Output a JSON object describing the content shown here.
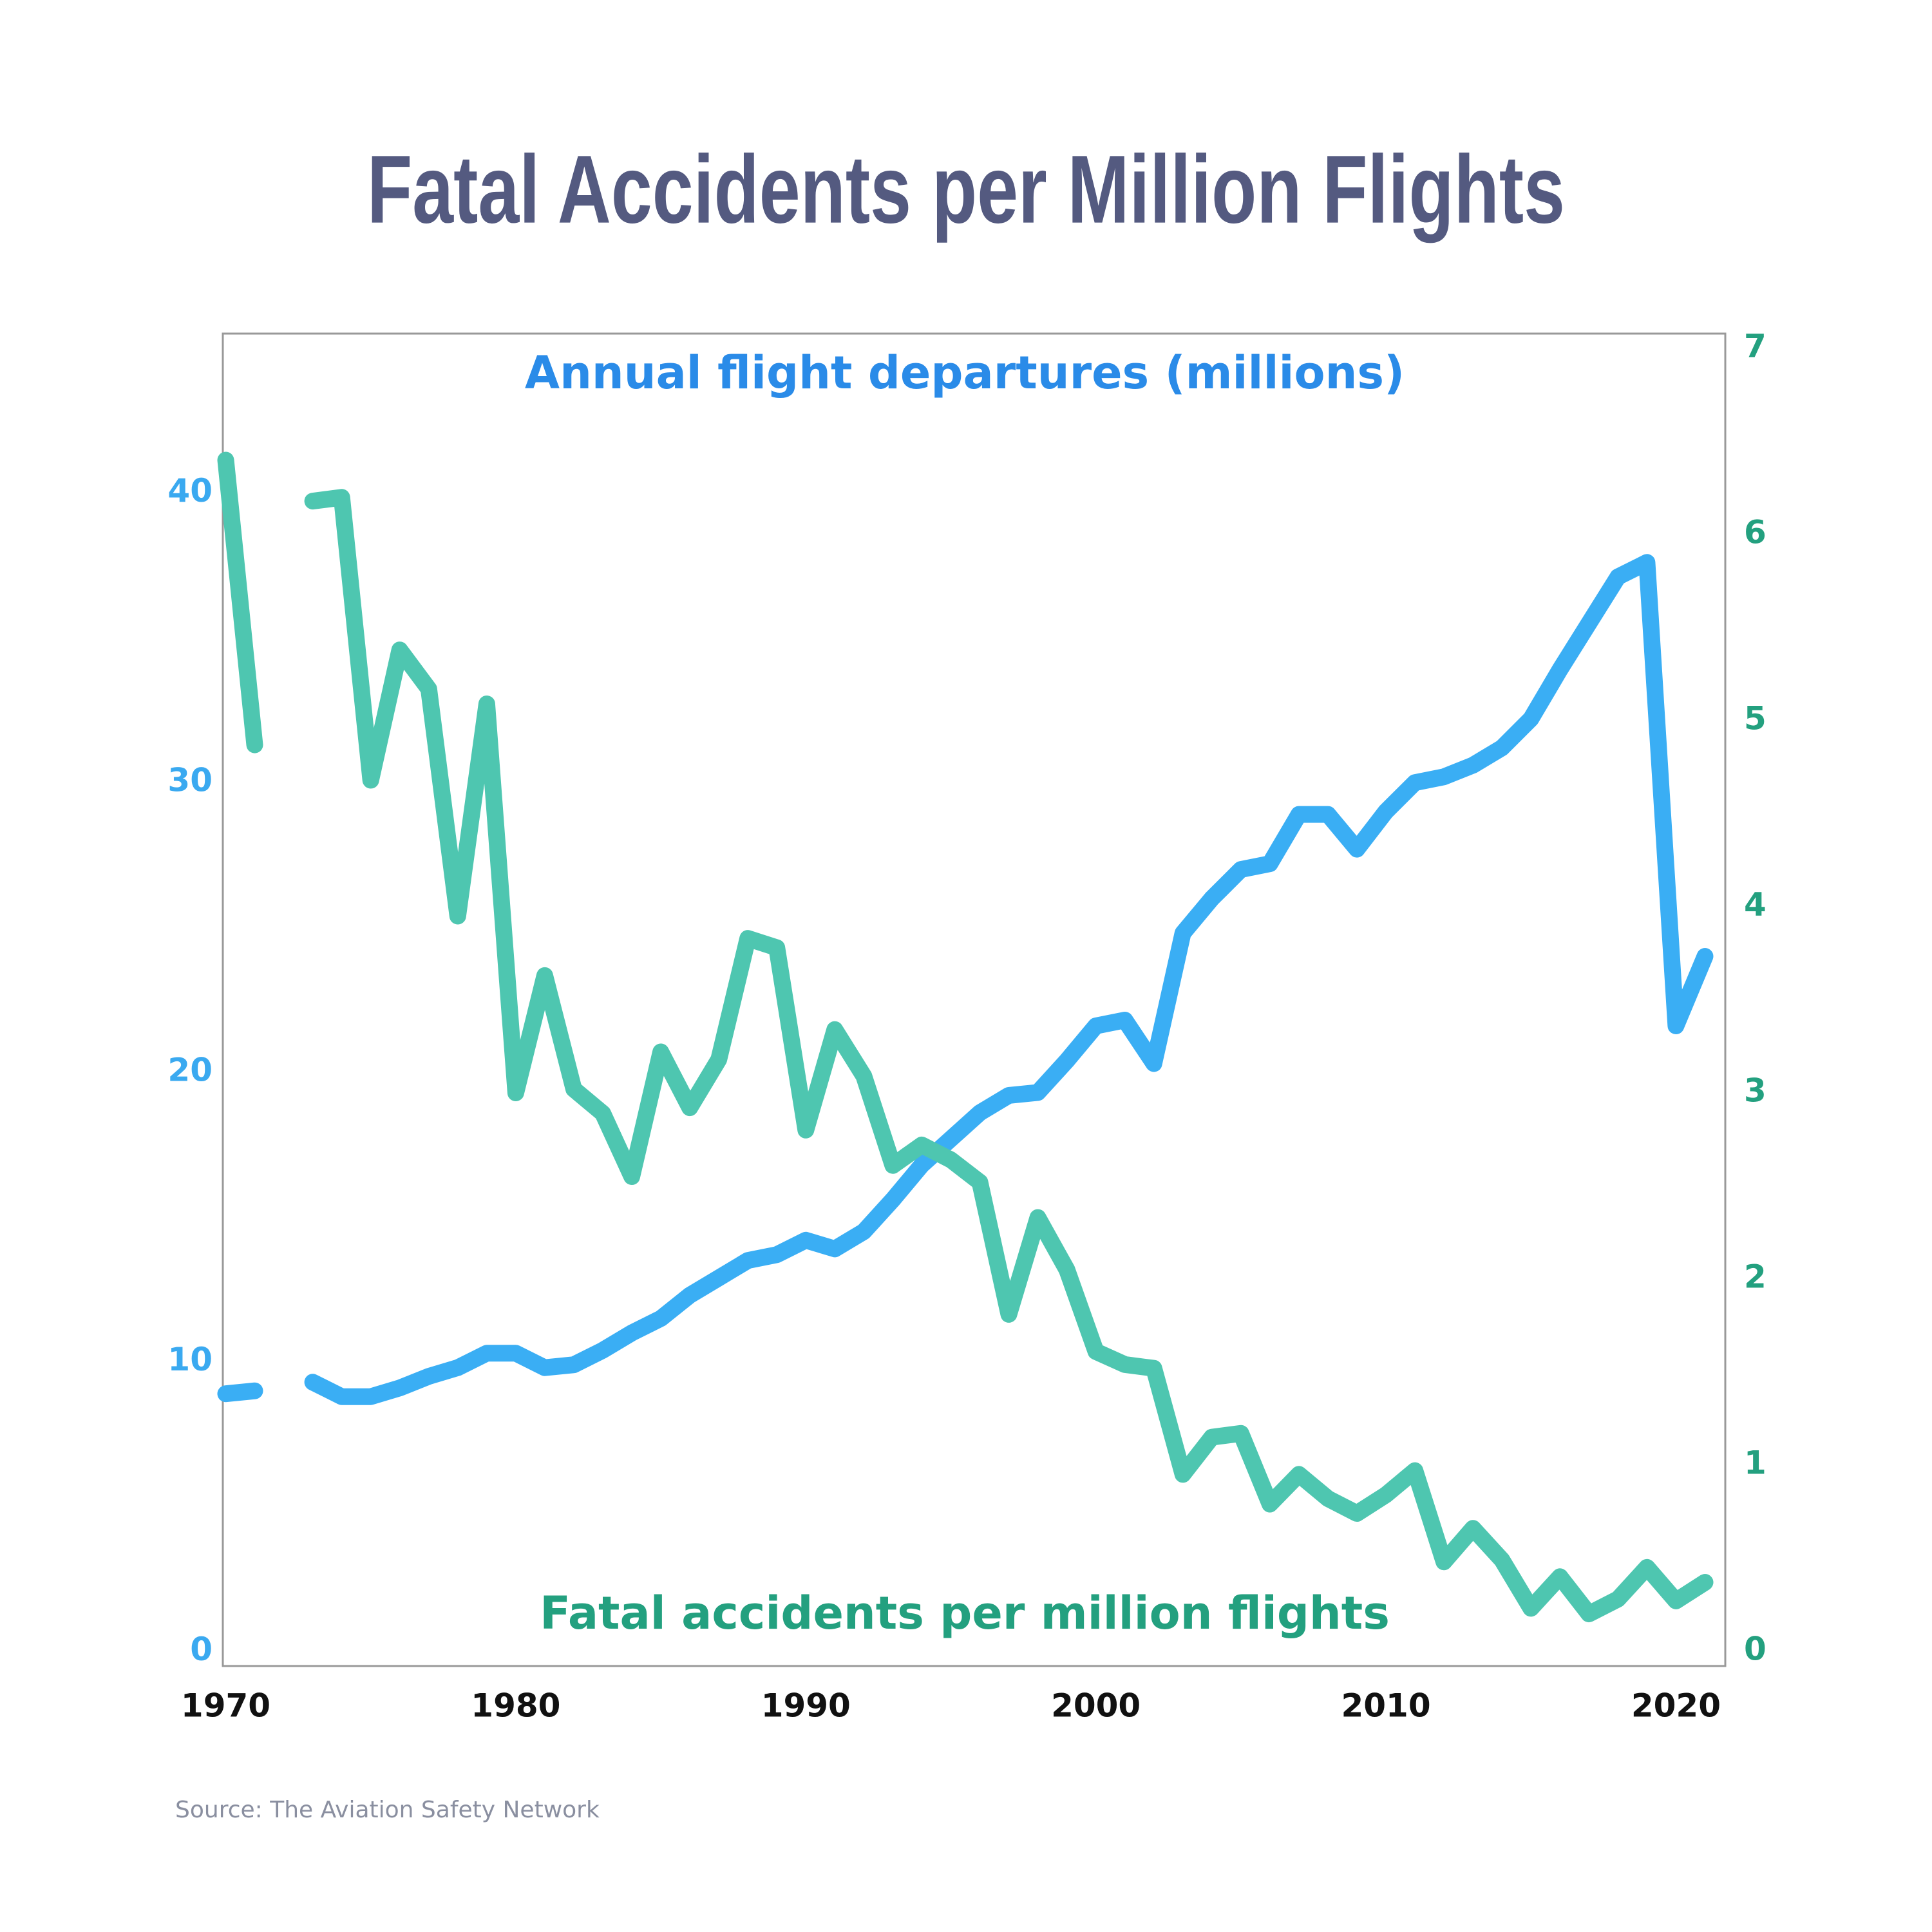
{
  "chart_data": {
    "type": "line",
    "title": "Fatal Accidents per Million Flights",
    "source": "Source: The Aviation Safety Network",
    "x": [
      1970,
      1971,
      1972,
      1973,
      1974,
      1975,
      1976,
      1977,
      1978,
      1979,
      1980,
      1981,
      1982,
      1983,
      1984,
      1985,
      1986,
      1987,
      1988,
      1989,
      1990,
      1991,
      1992,
      1993,
      1994,
      1995,
      1996,
      1997,
      1998,
      1999,
      2000,
      2001,
      2002,
      2003,
      2004,
      2005,
      2006,
      2007,
      2008,
      2009,
      2010,
      2011,
      2012,
      2013,
      2014,
      2015,
      2016,
      2017,
      2018,
      2019,
      2020,
      2021
    ],
    "series": [
      {
        "name": "Annual flight departures (millions)",
        "color": "#3aaef4",
        "axis": "y",
        "values": [
          8.9,
          9.0,
          null,
          9.3,
          8.8,
          8.8,
          9.1,
          9.5,
          9.8,
          10.3,
          10.3,
          9.8,
          9.9,
          10.4,
          11.0,
          11.5,
          12.3,
          12.9,
          13.5,
          13.7,
          14.2,
          13.9,
          14.5,
          15.6,
          16.8,
          17.7,
          18.6,
          19.2,
          19.3,
          20.4,
          21.6,
          21.8,
          20.3,
          24.8,
          26.0,
          27.0,
          27.2,
          28.9,
          28.9,
          27.7,
          29.0,
          30.0,
          30.2,
          30.6,
          31.2,
          32.2,
          33.9,
          35.5,
          37.1,
          37.6,
          21.6,
          24.0
        ]
      },
      {
        "name": "Fatal accidents per million flights",
        "color": "#4ec6b0",
        "axis": "y2",
        "values": [
          6.4,
          4.87,
          null,
          6.18,
          6.2,
          4.68,
          5.38,
          5.17,
          3.95,
          5.09,
          3.0,
          3.63,
          3.02,
          2.89,
          2.55,
          3.22,
          2.92,
          3.18,
          3.83,
          3.78,
          2.8,
          3.34,
          3.09,
          2.61,
          2.72,
          2.64,
          2.52,
          1.81,
          2.33,
          2.05,
          1.61,
          1.54,
          1.52,
          0.95,
          1.15,
          1.17,
          0.79,
          0.95,
          0.82,
          0.74,
          0.84,
          0.97,
          0.48,
          0.66,
          0.49,
          0.23,
          0.4,
          0.2,
          0.28,
          0.45,
          0.27,
          0.37
        ]
      }
    ],
    "xlim": [
      1969.9,
      2021.7
    ],
    "xticks": [
      1970,
      1980,
      1990,
      2000,
      2010,
      2020
    ],
    "ylim": [
      -0.5,
      45.5
    ],
    "yticks": [
      0,
      10,
      20,
      30,
      40
    ],
    "y2lim": [
      -0.08,
      7.08
    ],
    "y2ticks": [
      0,
      1,
      2,
      3,
      4,
      5,
      6,
      7
    ],
    "grid": false
  }
}
